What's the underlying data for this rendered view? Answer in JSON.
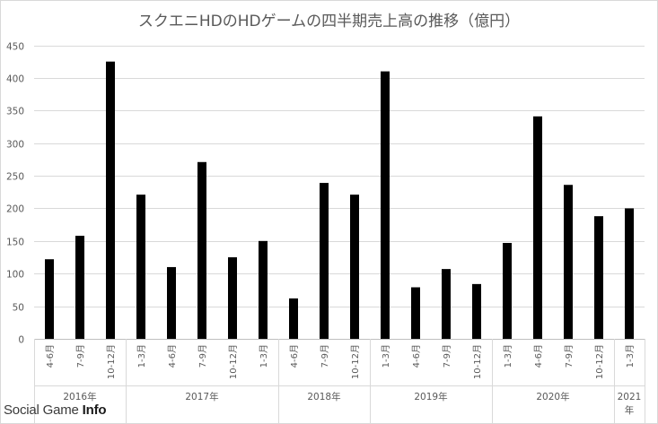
{
  "chart_data": {
    "type": "bar",
    "title": "スクエニHDのHDゲームの四半期売上高の推移（億円）",
    "xlabel": "",
    "ylabel": "",
    "ylim": [
      0,
      450
    ],
    "yticks": [
      0,
      50,
      100,
      150,
      200,
      250,
      300,
      350,
      400,
      450
    ],
    "grid": true,
    "legend": "none",
    "bar_color": "#000000",
    "categories": [
      "4-6月",
      "7-9月",
      "10-12月",
      "1-3月",
      "4-6月",
      "7-9月",
      "10-12月",
      "1-3月",
      "4-6月",
      "7-9月",
      "10-12月",
      "1-3月",
      "4-6月",
      "7-9月",
      "10-12月",
      "1-3月",
      "4-6月",
      "7-9月",
      "10-12月",
      "1-3月"
    ],
    "values": [
      122,
      158,
      425,
      221,
      110,
      271,
      125,
      150,
      62,
      239,
      221,
      410,
      79,
      107,
      84,
      147,
      341,
      236,
      188,
      200
    ],
    "groups": [
      {
        "label": "2016年",
        "count": 3
      },
      {
        "label": "2017年",
        "count": 5
      },
      {
        "label": "2018年",
        "count": 3
      },
      {
        "label": "2019年",
        "count": 4
      },
      {
        "label": "2020年",
        "count": 4
      },
      {
        "label": "2021\n年",
        "count": 1
      }
    ]
  },
  "watermark": {
    "light": "Social Game ",
    "bold": "Info"
  }
}
